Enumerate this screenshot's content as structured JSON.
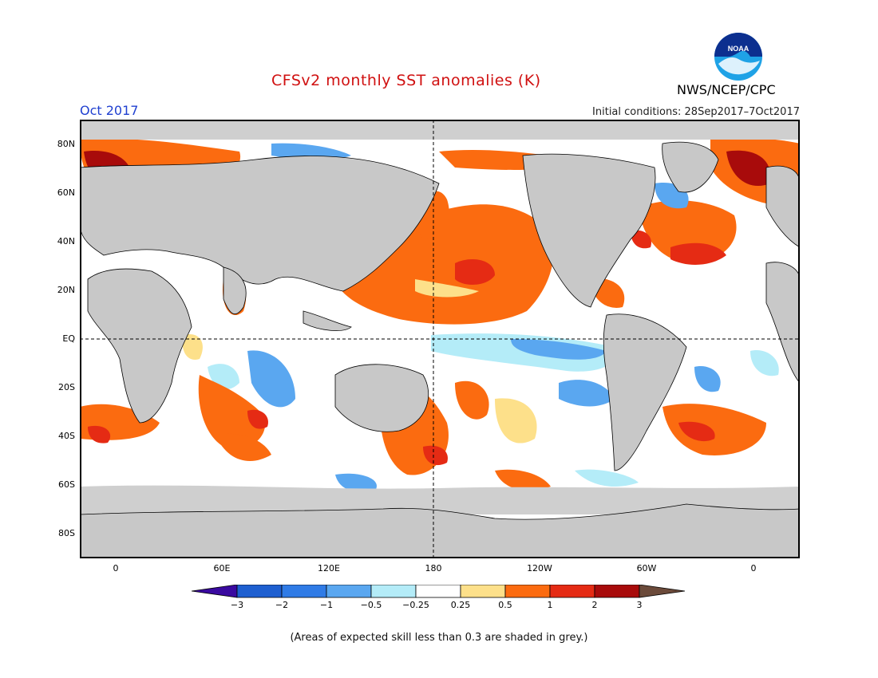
{
  "title": "CFSv2 monthly SST anomalies (K)",
  "org": "NWS/NCEP/CPC",
  "month": "Oct 2017",
  "initial_conditions": "Initial conditions: 28Sep2017–7Oct2017",
  "footnote": "(Areas of expected skill less than 0.3 are shaded in grey.)",
  "logo_text": "NOAA",
  "lat_labels": [
    "80N",
    "60N",
    "40N",
    "20N",
    "EQ",
    "20S",
    "40S",
    "60S",
    "80S"
  ],
  "lon_labels": [
    "0",
    "60E",
    "120E",
    "180",
    "120W",
    "60W",
    "0"
  ],
  "colorbar": {
    "ticks": [
      "−3",
      "−2",
      "−1",
      "−0.5",
      "−0.25",
      "0.25",
      "0.5",
      "1",
      "2",
      "3"
    ],
    "colors": [
      "#3a0aa0",
      "#1e5fd0",
      "#2f7be6",
      "#5aa7f0",
      "#b4ecf8",
      "#ffffff",
      "#fde08a",
      "#fb6b10",
      "#e52b14",
      "#a80b0b",
      "#6b4a3a"
    ]
  },
  "colors": {
    "land": "#c8c8c8",
    "skill_grey": "#cfcfcf",
    "title": "#d01010",
    "month": "#2040d0"
  }
}
